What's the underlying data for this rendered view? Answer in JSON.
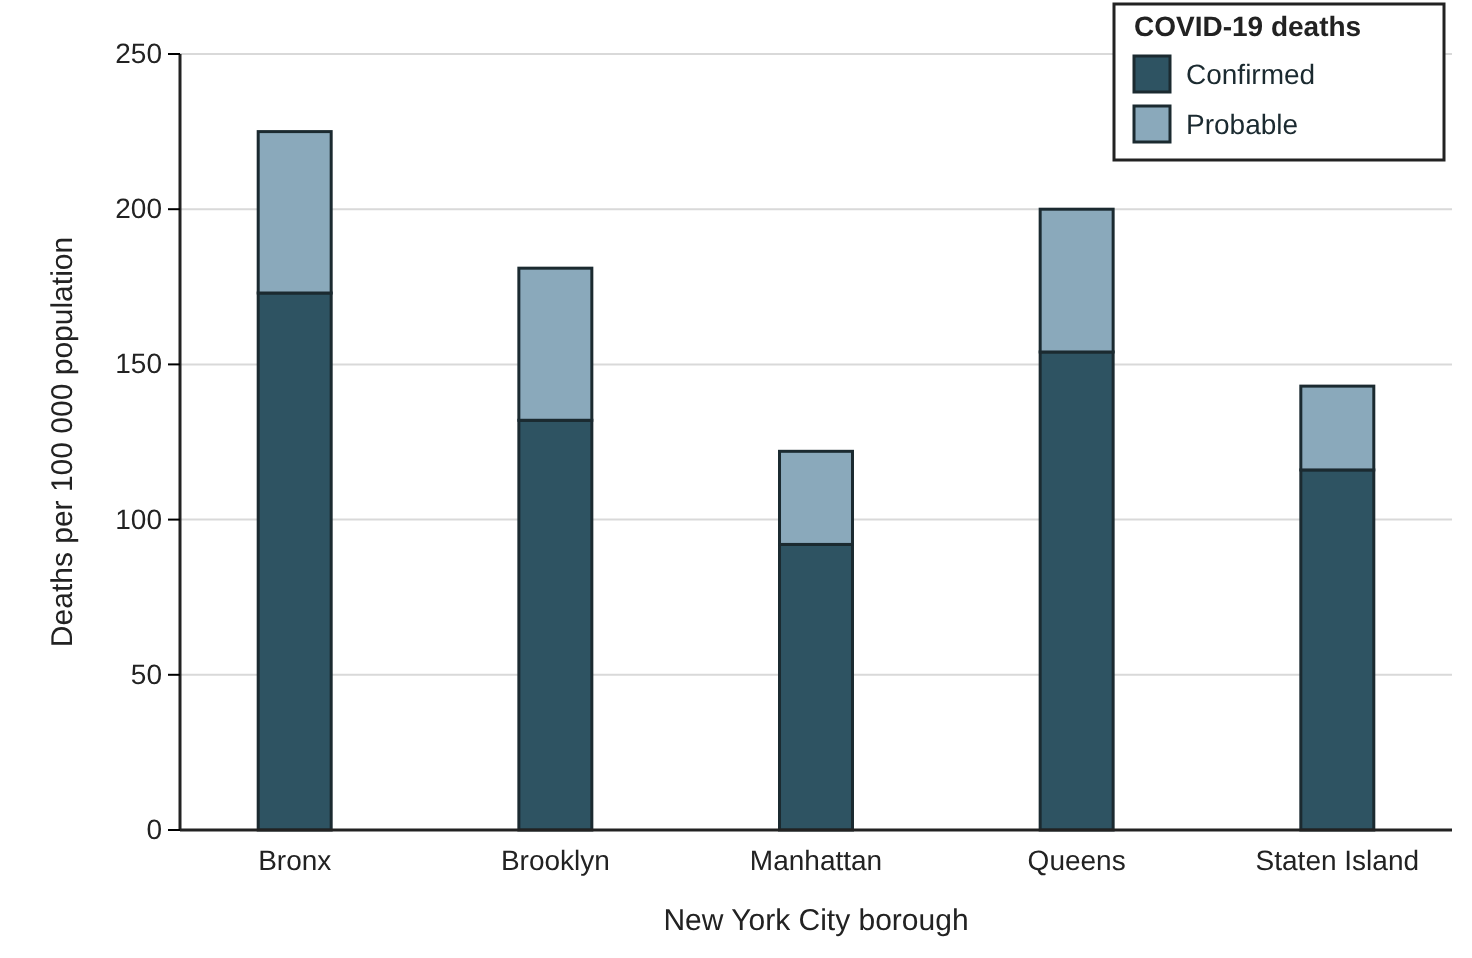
{
  "chart_data": {
    "type": "bar",
    "stacked": true,
    "xlabel": "New York City borough",
    "ylabel": "Deaths per 100 000 population",
    "legend_title": "COVID-19 deaths",
    "legend": "top right",
    "grid": "y",
    "categories": [
      "Bronx",
      "Brooklyn",
      "Manhattan",
      "Queens",
      "Staten Island"
    ],
    "series": [
      {
        "name": "Confirmed",
        "color": "#2e5362",
        "values": [
          173,
          132,
          92,
          154,
          116
        ]
      },
      {
        "name": "Probable",
        "color": "#8aa9bb",
        "values": [
          52,
          49,
          30,
          46,
          27
        ]
      }
    ],
    "ylim": [
      0,
      250
    ],
    "yticks": [
      0,
      50,
      100,
      150,
      200,
      250
    ]
  }
}
